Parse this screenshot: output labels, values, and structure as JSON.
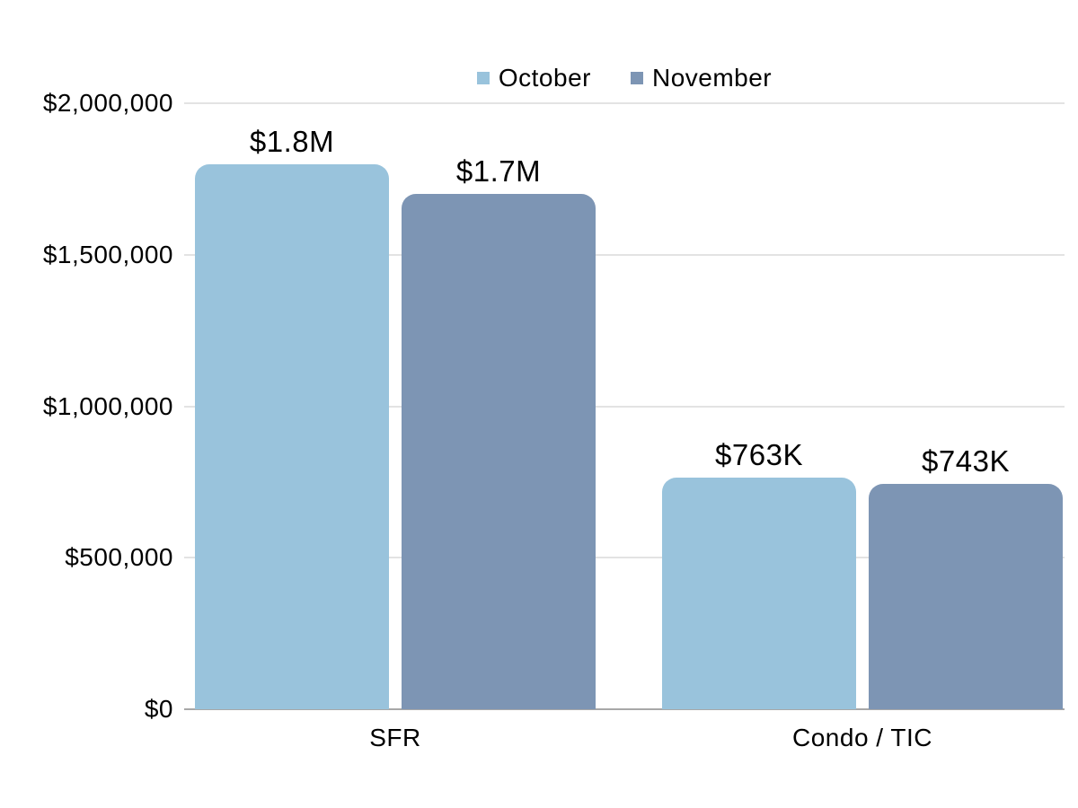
{
  "chart_data": {
    "type": "bar",
    "title": "",
    "categories": [
      "SFR",
      "Condo / TIC"
    ],
    "series": [
      {
        "name": "October",
        "color": "#99C3DC",
        "values": [
          1800000,
          763000
        ],
        "data_labels": [
          "$1.8M",
          "$763K"
        ]
      },
      {
        "name": "November",
        "color": "#7D95B4",
        "values": [
          1700000,
          743000
        ],
        "data_labels": [
          "$1.7M",
          "$743K"
        ]
      }
    ],
    "y_axis": {
      "min": 0,
      "max": 2000000,
      "ticks": [
        0,
        500000,
        1000000,
        1500000,
        2000000
      ],
      "tick_labels": [
        "$0",
        "$500,000",
        "$1,000,000",
        "$1,500,000",
        "$2,000,000"
      ]
    },
    "legend_position": "top-center",
    "grid": true,
    "colors": {
      "background": "#ffffff",
      "gridline": "#e3e3e3",
      "axis_line": "#a8a8a8",
      "text": "#000000"
    }
  }
}
